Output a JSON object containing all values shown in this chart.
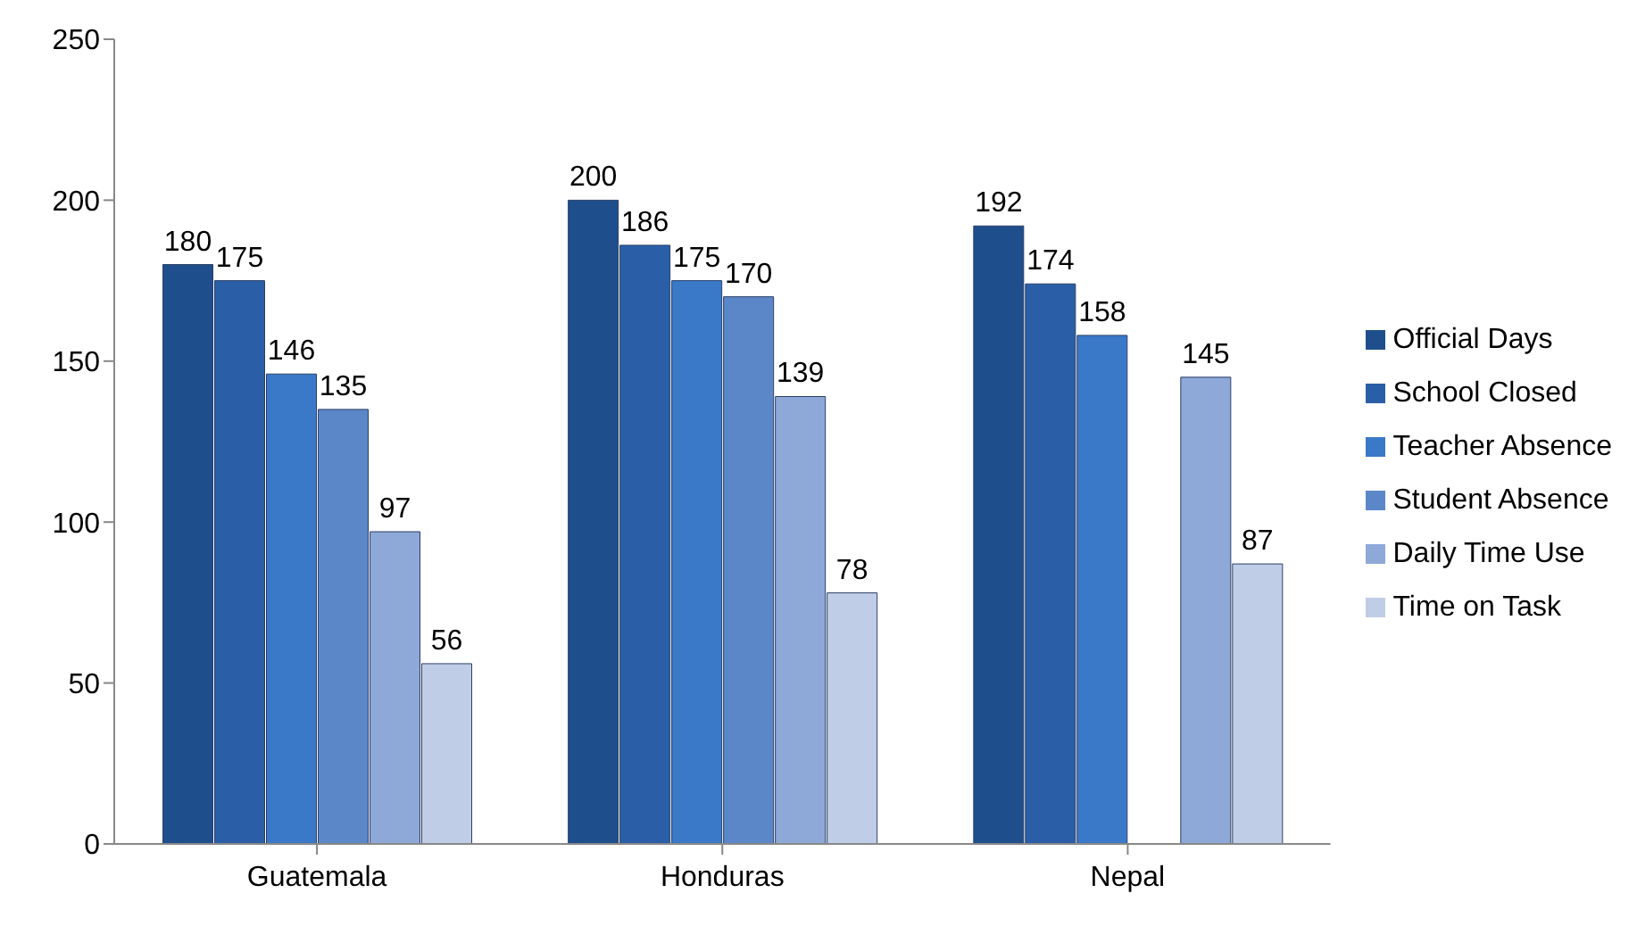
{
  "chart_data": {
    "type": "bar",
    "categories": [
      "Guatemala",
      "Honduras",
      "Nepal"
    ],
    "series": [
      {
        "name": "Official Days",
        "color": "#1f4e8c",
        "values": [
          180,
          200,
          192
        ]
      },
      {
        "name": "School Closed",
        "color": "#2a5fa8",
        "values": [
          175,
          186,
          174
        ]
      },
      {
        "name": "Teacher Absence",
        "color": "#3a78c8",
        "values": [
          146,
          175,
          158
        ]
      },
      {
        "name": "Student Absence",
        "color": "#5b87c8",
        "values": [
          135,
          170,
          null
        ]
      },
      {
        "name": "Daily Time Use",
        "color": "#8ea8d8",
        "values": [
          97,
          139,
          145
        ]
      },
      {
        "name": "Time on Task",
        "color": "#c0cde6",
        "values": [
          56,
          78,
          87
        ]
      }
    ],
    "ylim": [
      0,
      250
    ],
    "yticks": [
      0,
      50,
      100,
      150,
      200,
      250
    ],
    "grid": false,
    "legend": "right",
    "data_labels": true
  }
}
